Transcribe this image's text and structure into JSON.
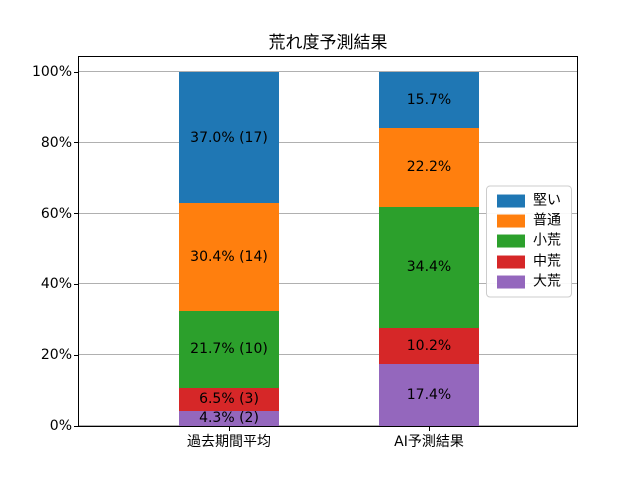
{
  "chart_data": {
    "type": "bar",
    "stacked": true,
    "orientation": "vertical",
    "title": "荒れ度予測結果",
    "categories": [
      "過去期間平均",
      "AI予測結果"
    ],
    "series": [
      {
        "name": "堅い",
        "color": "#1f77b4",
        "values": [
          37.0,
          15.7
        ],
        "labels": [
          "37.0% (17)",
          "15.7%"
        ]
      },
      {
        "name": "普通",
        "color": "#ff7f0e",
        "values": [
          30.4,
          22.2
        ],
        "labels": [
          "30.4% (14)",
          "22.2%"
        ]
      },
      {
        "name": "小荒",
        "color": "#2ca02c",
        "values": [
          21.7,
          34.4
        ],
        "labels": [
          "21.7% (10)",
          "34.4%"
        ]
      },
      {
        "name": "中荒",
        "color": "#d62728",
        "values": [
          6.5,
          10.2
        ],
        "labels": [
          "6.5% (3)",
          "10.2%"
        ]
      },
      {
        "name": "大荒",
        "color": "#9467bd",
        "values": [
          4.3,
          17.4
        ],
        "labels": [
          "4.3% (2)",
          "17.4%"
        ]
      }
    ],
    "stack_order_bottom_to_top": [
      "大荒",
      "中荒",
      "小荒",
      "普通",
      "堅い"
    ],
    "yticks": [
      {
        "value": 0,
        "label": "0%"
      },
      {
        "value": 20,
        "label": "20%"
      },
      {
        "value": 40,
        "label": "40%"
      },
      {
        "value": 60,
        "label": "60%"
      },
      {
        "value": 80,
        "label": "80%"
      },
      {
        "value": 100,
        "label": "100%"
      }
    ],
    "ylim": [
      0,
      104.8
    ],
    "grid": true,
    "grid_color": "#b0b0b0",
    "legend_position": "center right",
    "value_label_color": "#000000"
  }
}
